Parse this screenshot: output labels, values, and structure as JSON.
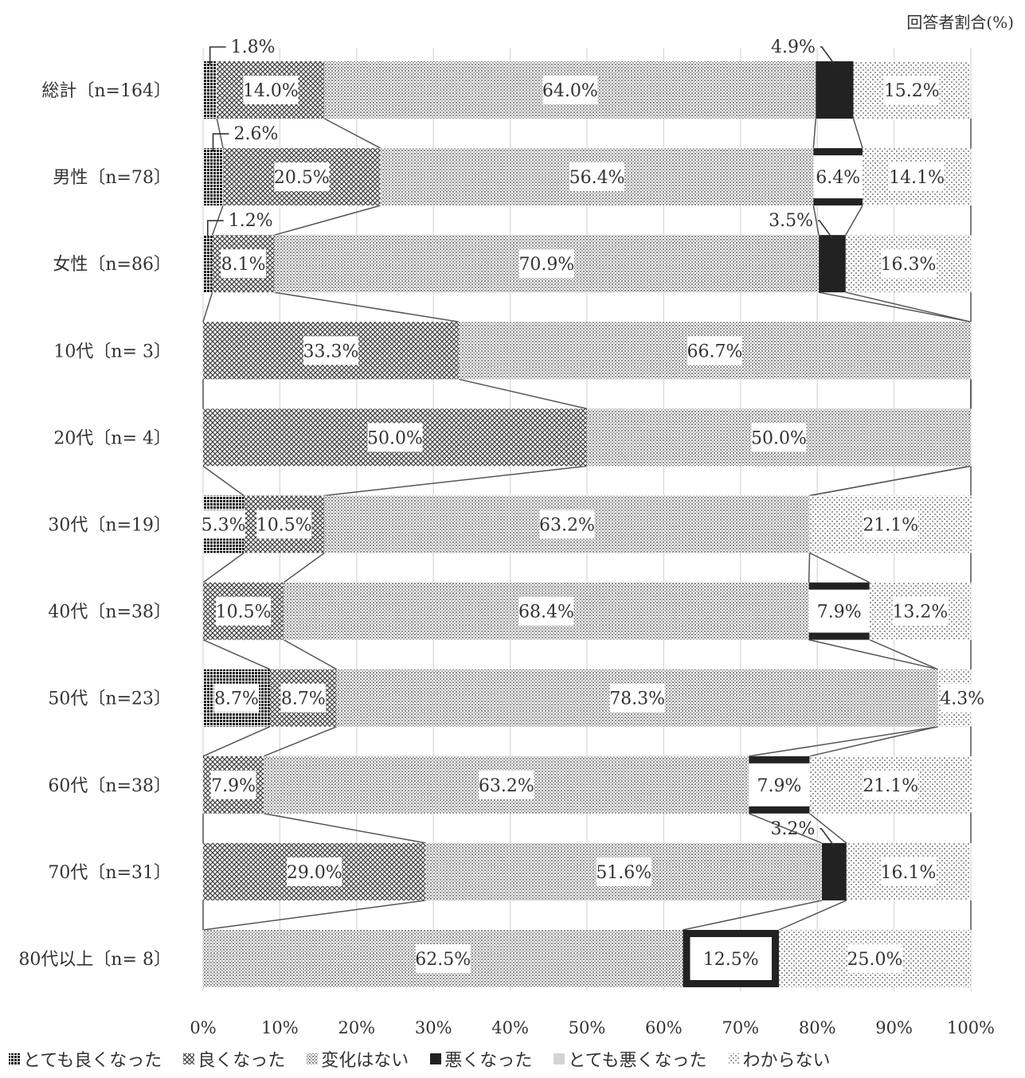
{
  "chart_data": {
    "type": "bar",
    "orientation": "horizontal",
    "stacked": true,
    "unit_label": "回答者割合(%)",
    "categories": [
      "総計〔n=164〕",
      "男性〔n=78〕",
      "女性〔n=86〕",
      "10代〔n= 3〕",
      "20代〔n= 4〕",
      "30代〔n=19〕",
      "40代〔n=38〕",
      "50代〔n=23〕",
      "60代〔n=38〕",
      "70代〔n=31〕",
      "80代以上〔n= 8〕"
    ],
    "series": [
      {
        "name": "とても良くなった",
        "values": [
          1.8,
          2.6,
          1.2,
          0,
          0,
          5.3,
          0,
          8.7,
          0,
          0,
          0
        ]
      },
      {
        "name": "良くなった",
        "values": [
          14.0,
          20.5,
          8.1,
          33.3,
          50.0,
          10.5,
          10.5,
          8.7,
          7.9,
          29.0,
          0
        ]
      },
      {
        "name": "変化はない",
        "values": [
          64.0,
          56.4,
          70.9,
          66.7,
          50.0,
          63.2,
          68.4,
          78.3,
          63.2,
          51.6,
          62.5
        ]
      },
      {
        "name": "悪くなった",
        "values": [
          4.9,
          6.4,
          3.5,
          0,
          0,
          0,
          7.9,
          0,
          7.9,
          3.2,
          12.5
        ]
      },
      {
        "name": "とても悪くなった",
        "values": [
          0,
          0,
          0,
          0,
          0,
          0,
          0,
          0,
          0,
          0,
          0
        ]
      },
      {
        "name": "わからない",
        "values": [
          15.2,
          14.1,
          16.3,
          0,
          0,
          21.1,
          13.2,
          4.3,
          21.1,
          16.1,
          25.0
        ]
      }
    ],
    "data_labels": [
      [
        "1.8%",
        "14.0%",
        "64.0%",
        "4.9%",
        "",
        "15.2%"
      ],
      [
        "2.6%",
        "20.5%",
        "56.4%",
        "6.4%",
        "",
        "14.1%"
      ],
      [
        "1.2%",
        "8.1%",
        "70.9%",
        "3.5%",
        "",
        "16.3%"
      ],
      [
        "",
        "33.3%",
        "66.7%",
        "",
        "",
        ""
      ],
      [
        "",
        "50.0%",
        "50.0%",
        "",
        "",
        ""
      ],
      [
        "5.3%",
        "10.5%",
        "63.2%",
        "",
        "",
        "21.1%"
      ],
      [
        "",
        "10.5%",
        "68.4%",
        "7.9%",
        "",
        "13.2%"
      ],
      [
        "8.7%",
        "8.7%",
        "78.3%",
        "",
        "",
        "4.3%"
      ],
      [
        "",
        "7.9%",
        "63.2%",
        "7.9%",
        "",
        "21.1%"
      ],
      [
        "",
        "29.0%",
        "51.6%",
        "3.2%",
        "",
        "16.1%"
      ],
      [
        "",
        "",
        "62.5%",
        "12.5%",
        "",
        "25.0%"
      ]
    ],
    "xlim": [
      0,
      100
    ],
    "x_ticks": [
      "0%",
      "10%",
      "20%",
      "30%",
      "40%",
      "50%",
      "60%",
      "70%",
      "80%",
      "90%",
      "100%"
    ],
    "grid": true,
    "legend_position": "bottom",
    "series_line_connectors": true
  }
}
